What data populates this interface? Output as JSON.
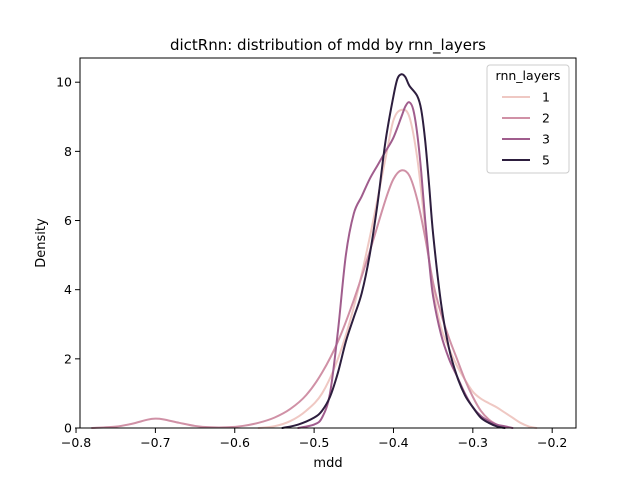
{
  "chart_data": {
    "type": "line",
    "title": "dictRnn: distribution of mdd by rnn_layers",
    "xlabel": "mdd",
    "ylabel": "Density",
    "xlim": [
      -0.795,
      -0.17
    ],
    "ylim": [
      0,
      10.7
    ],
    "xticks": [
      -0.8,
      -0.7,
      -0.6,
      -0.5,
      -0.4,
      -0.3,
      -0.2
    ],
    "xtick_labels": [
      "−0.8",
      "−0.7",
      "−0.6",
      "−0.5",
      "−0.4",
      "−0.3",
      "−0.2"
    ],
    "yticks": [
      0,
      2,
      4,
      6,
      8,
      10
    ],
    "ytick_labels": [
      "0",
      "2",
      "4",
      "6",
      "8",
      "10"
    ],
    "grid": false,
    "legend": {
      "title": "rnn_layers",
      "placement": "top-right"
    },
    "series": [
      {
        "name": "1",
        "color": "#efc8c3",
        "x": [
          -0.57,
          -0.55,
          -0.53,
          -0.51,
          -0.49,
          -0.47,
          -0.45,
          -0.43,
          -0.41,
          -0.4,
          -0.39,
          -0.38,
          -0.37,
          -0.36,
          -0.35,
          -0.34,
          -0.33,
          -0.32,
          -0.31,
          -0.3,
          -0.29,
          -0.28,
          -0.27,
          -0.26,
          -0.25,
          -0.24,
          -0.23,
          -0.22
        ],
        "y": [
          0.0,
          0.05,
          0.2,
          0.5,
          1.0,
          2.0,
          3.5,
          5.5,
          7.8,
          8.9,
          9.2,
          9.0,
          7.8,
          5.8,
          4.0,
          2.9,
          2.3,
          1.8,
          1.4,
          1.05,
          0.85,
          0.72,
          0.6,
          0.45,
          0.3,
          0.15,
          0.05,
          0.0
        ]
      },
      {
        "name": "2",
        "color": "#d091a6",
        "x": [
          -0.78,
          -0.75,
          -0.73,
          -0.71,
          -0.7,
          -0.69,
          -0.67,
          -0.65,
          -0.63,
          -0.61,
          -0.59,
          -0.57,
          -0.55,
          -0.53,
          -0.51,
          -0.49,
          -0.47,
          -0.45,
          -0.43,
          -0.41,
          -0.4,
          -0.39,
          -0.38,
          -0.37,
          -0.36,
          -0.35,
          -0.34,
          -0.33,
          -0.32,
          -0.31,
          -0.3,
          -0.29,
          -0.28,
          -0.27,
          -0.26
        ],
        "y": [
          0.0,
          0.04,
          0.12,
          0.24,
          0.27,
          0.25,
          0.15,
          0.06,
          0.02,
          0.02,
          0.06,
          0.15,
          0.3,
          0.55,
          0.95,
          1.6,
          2.5,
          3.7,
          5.1,
          6.6,
          7.2,
          7.45,
          7.3,
          6.6,
          5.5,
          4.2,
          3.3,
          2.6,
          2.0,
          1.4,
          0.9,
          0.5,
          0.25,
          0.1,
          0.0
        ]
      },
      {
        "name": "3",
        "color": "#a05d8d",
        "x": [
          -0.52,
          -0.5,
          -0.49,
          -0.48,
          -0.47,
          -0.46,
          -0.45,
          -0.44,
          -0.43,
          -0.42,
          -0.41,
          -0.4,
          -0.39,
          -0.385,
          -0.38,
          -0.375,
          -0.37,
          -0.365,
          -0.36,
          -0.355,
          -0.35,
          -0.34,
          -0.33,
          -0.32,
          -0.31,
          -0.3,
          -0.29,
          -0.28,
          -0.27,
          -0.26,
          -0.25
        ],
        "y": [
          0.0,
          0.1,
          0.3,
          1.0,
          2.8,
          5.0,
          6.2,
          6.7,
          7.2,
          7.6,
          8.0,
          8.4,
          9.0,
          9.3,
          9.42,
          9.2,
          8.5,
          7.4,
          6.0,
          4.8,
          3.8,
          2.7,
          2.0,
          1.5,
          1.0,
          0.6,
          0.35,
          0.2,
          0.1,
          0.05,
          0.0
        ]
      },
      {
        "name": "5",
        "color": "#2d1e3e",
        "x": [
          -0.54,
          -0.52,
          -0.5,
          -0.49,
          -0.48,
          -0.47,
          -0.46,
          -0.45,
          -0.44,
          -0.43,
          -0.42,
          -0.41,
          -0.4,
          -0.395,
          -0.39,
          -0.385,
          -0.38,
          -0.37,
          -0.365,
          -0.36,
          -0.355,
          -0.35,
          -0.34,
          -0.33,
          -0.32,
          -0.31,
          -0.3,
          -0.29,
          -0.28,
          -0.27,
          -0.26
        ],
        "y": [
          0.0,
          0.1,
          0.3,
          0.5,
          0.9,
          1.6,
          2.5,
          3.2,
          3.9,
          5.0,
          6.5,
          8.3,
          9.6,
          10.1,
          10.23,
          10.15,
          9.9,
          9.6,
          9.2,
          8.3,
          7.0,
          5.6,
          3.6,
          2.3,
          1.5,
          0.95,
          0.6,
          0.3,
          0.15,
          0.05,
          0.0
        ]
      }
    ]
  }
}
